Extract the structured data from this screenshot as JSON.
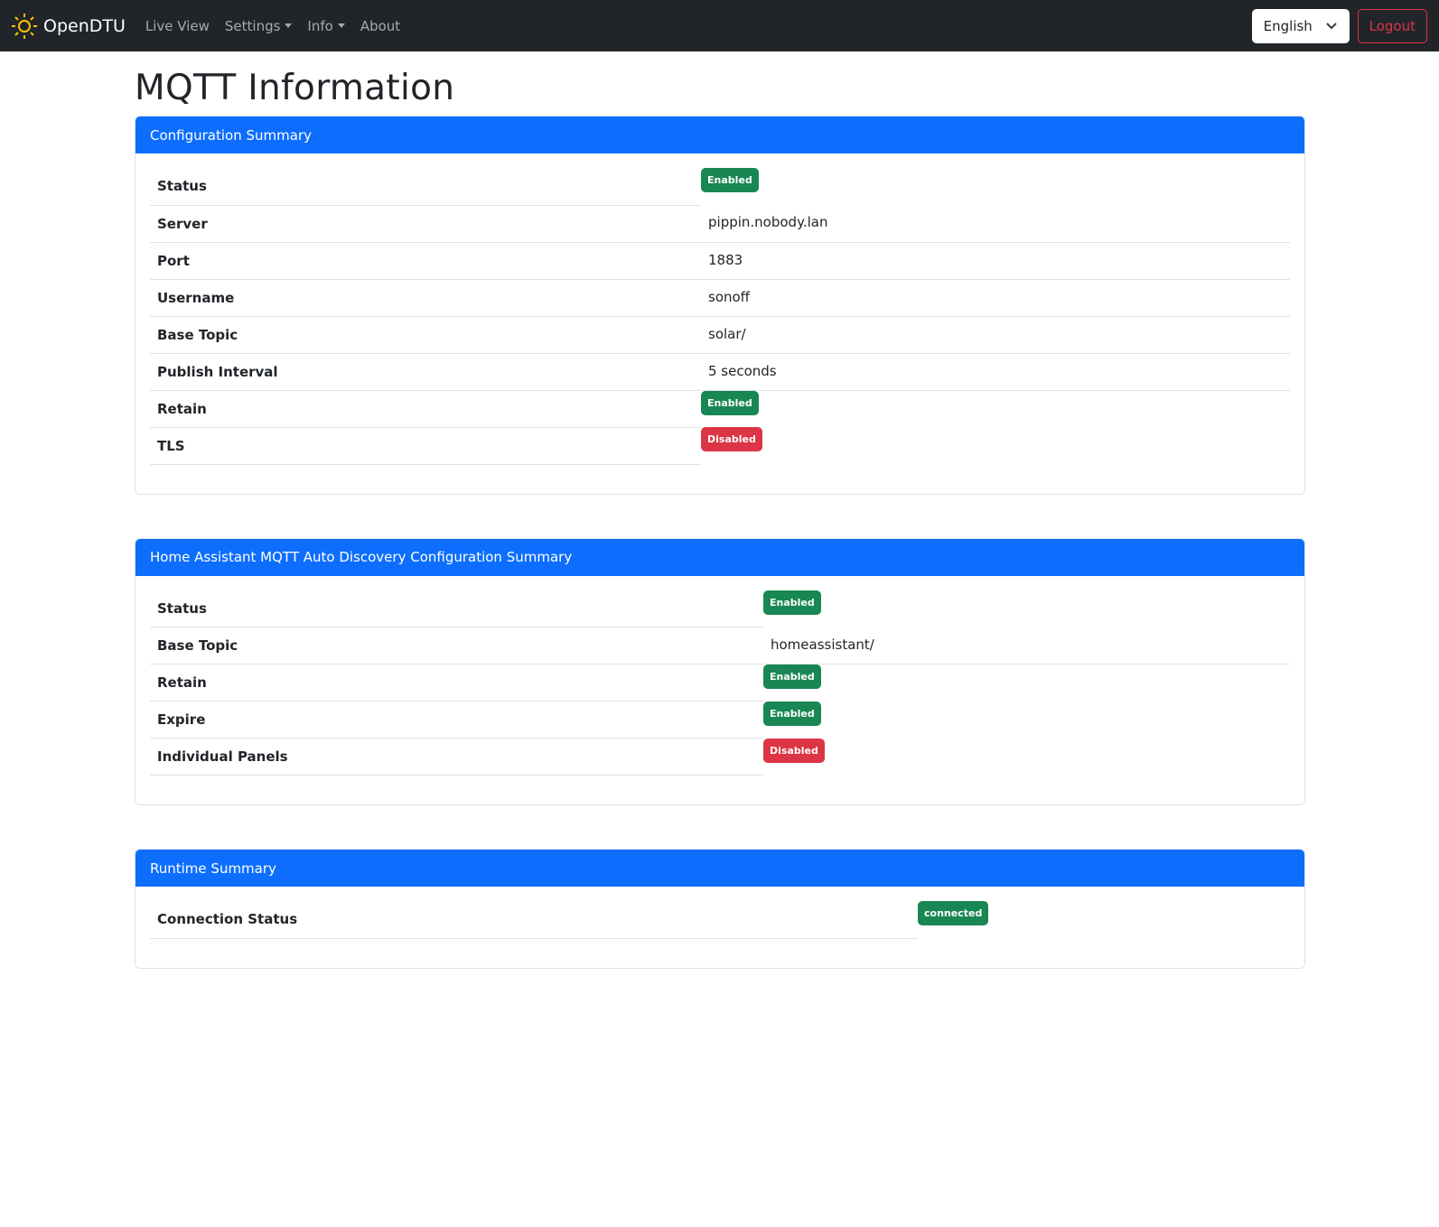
{
  "nav": {
    "brand": "OpenDTU",
    "links": [
      {
        "label": "Live View",
        "dropdown": false
      },
      {
        "label": "Settings",
        "dropdown": true
      },
      {
        "label": "Info",
        "dropdown": true
      },
      {
        "label": "About",
        "dropdown": false
      }
    ],
    "language": "English",
    "logout": "Logout"
  },
  "page_title": "MQTT Information",
  "colors": {
    "primary": "#0d6efd",
    "success": "#198754",
    "danger": "#dc3545",
    "navbar": "#212529"
  },
  "cards": [
    {
      "title": "Configuration Summary",
      "rows": [
        {
          "label": "Status",
          "badge": "Enabled",
          "ok": true
        },
        {
          "label": "Server",
          "value": "pippin.nobody.lan"
        },
        {
          "label": "Port",
          "value": "1883"
        },
        {
          "label": "Username",
          "value": "sonoff"
        },
        {
          "label": "Base Topic",
          "value": "solar/"
        },
        {
          "label": "Publish Interval",
          "value": "5 seconds"
        },
        {
          "label": "Retain",
          "badge": "Enabled",
          "ok": true
        },
        {
          "label": "TLS",
          "badge": "Disabled",
          "ok": false
        }
      ]
    },
    {
      "title": "Home Assistant MQTT Auto Discovery Configuration Summary",
      "rows": [
        {
          "label": "Status",
          "badge": "Enabled",
          "ok": true
        },
        {
          "label": "Base Topic",
          "value": "homeassistant/"
        },
        {
          "label": "Retain",
          "badge": "Enabled",
          "ok": true
        },
        {
          "label": "Expire",
          "badge": "Enabled",
          "ok": true
        },
        {
          "label": "Individual Panels",
          "badge": "Disabled",
          "ok": false
        }
      ]
    },
    {
      "title": "Runtime Summary",
      "rows": [
        {
          "label": "Connection Status",
          "badge": "connected",
          "ok": true
        }
      ]
    }
  ]
}
